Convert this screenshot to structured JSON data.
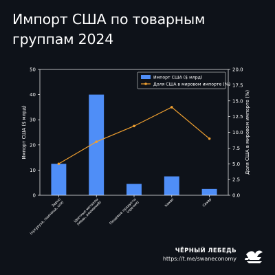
{
  "title": "Импорт США по товарным группам 2024",
  "brand": {
    "name": "ЧЁРНЫЙ ЛЕБЕДЬ",
    "link": "https://t.me/swaneconomy",
    "logo_icon": "swan-logo-icon"
  },
  "colors": {
    "background": "#0e1219",
    "bar": "#4f8ef7",
    "line": "#f0a030",
    "axis": "#ffffff"
  },
  "chart_data": {
    "type": "bar",
    "categories": [
      "Зерно\n(кукуруза, пшеница, соя)",
      "Цветные металлы\n(медь, алюминий)",
      "Пищевые продукты\n(прочие)",
      "Какао",
      "Сахар"
    ],
    "category_labels": [
      "Зерно (кукуруза, пшеница, соя)",
      "Цветные металлы (медь, алюминий)",
      "Пищевые продукты (прочие)",
      "Какао",
      "Сахар"
    ],
    "series": [
      {
        "name": "Импорт США ($ млрд)",
        "type": "bar",
        "axis": "left",
        "values": [
          12.5,
          40,
          4.5,
          7.5,
          2.5
        ]
      },
      {
        "name": "Доля США в мировом импорте (%)",
        "type": "line",
        "axis": "right",
        "values": [
          5,
          8.5,
          11,
          14,
          9
        ]
      }
    ],
    "ylabel": "Импорт США ($ млрд)",
    "y2label": "Доля США в мировом импорте (%)",
    "ylim": [
      0,
      50
    ],
    "y2lim": [
      0,
      20
    ],
    "yticks": [
      "0",
      "10",
      "20",
      "30",
      "40",
      "50"
    ],
    "y2ticks": [
      "0.0",
      "2.5",
      "5.0",
      "7.5",
      "10.0",
      "12.5",
      "15.0",
      "17.5",
      "20.0"
    ],
    "legend": "top-right",
    "grid": false
  }
}
